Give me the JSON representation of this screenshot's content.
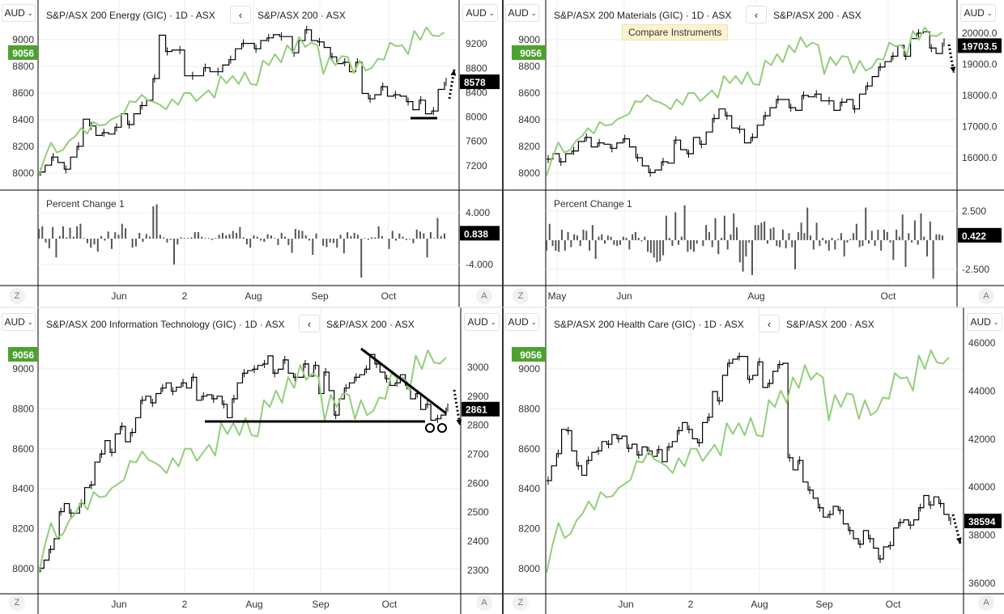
{
  "colors": {
    "benchmark_line": "#93cf7b",
    "sector_line": "#000000",
    "badge_benchmark": "#4ca22f",
    "badge_sector": "#000000",
    "indicator_bars": "#555555",
    "gridlines": "#eeeeee"
  },
  "tooltip": "Compare Instruments",
  "chart_data": [
    {
      "type": "line",
      "title": "S&P/ASX 200 Energy (GIC) · 1D · ASX",
      "compare": "S&P/ASX 200 · ASX",
      "currency_left": "AUD",
      "currency_right": "AUD",
      "left_badge": "9056",
      "right_badge": "8578",
      "left_axis": {
        "range": [
          7873,
          9297
        ],
        "ticks": [
          "8000",
          "8200",
          "8400",
          "8600",
          "8800",
          "9000"
        ]
      },
      "right_axis": {
        "range": [
          6800,
          9920
        ],
        "ticks": [
          "7200",
          "7600",
          "8000",
          "8400",
          "8800",
          "9200"
        ]
      },
      "x_ticks": [
        "Jun",
        "2",
        "Aug",
        "Sep",
        "Oct"
      ],
      "series": [
        {
          "name": "S&P/ASX 200 Energy (GIC)",
          "axis": "right",
          "values": [
            7098,
            7209,
            7342,
            7253,
            7142,
            7342,
            7520,
            7964,
            7853,
            7698,
            7742,
            7720,
            7831,
            8053,
            7875,
            8053,
            8187,
            8276,
            8631,
            9342,
            9076,
            9098,
            9098,
            8676,
            8676,
            8676,
            8809,
            8742,
            8742,
            8853,
            8942,
            9120,
            9209,
            9209,
            9120,
            9253,
            9298,
            9351,
            9320,
            9320,
            9053,
            9253,
            9431,
            9253,
            9231,
            9142,
            8987,
            8876,
            8898,
            8742,
            8898,
            8387,
            8298,
            8365,
            8498,
            8342,
            8365,
            8342,
            8253,
            8120,
            8276,
            8053,
            8098,
            8453,
            8578
          ]
        },
        {
          "name": "S&P/ASX 200",
          "axis": "left",
          "values": [
            7979,
            8120,
            8229,
            8154,
            8175,
            8242,
            8276,
            8337,
            8296,
            8384,
            8357,
            8364,
            8404,
            8424,
            8445,
            8539,
            8532,
            8587,
            8546,
            8532,
            8512,
            8478,
            8553,
            8512,
            8600,
            8600,
            8539,
            8580,
            8620,
            8566,
            8728,
            8674,
            8728,
            8668,
            8755,
            8668,
            8661,
            8843,
            8809,
            8891,
            8830,
            8958,
            8904,
            9019,
            8945,
            8978,
            8958,
            8742,
            8870,
            8809,
            8877,
            8870,
            8749,
            8843,
            8768,
            8789,
            8857,
            8850,
            8978,
            8951,
            8958,
            8891,
            9066,
            8999,
            9093,
            9032,
            9026,
            9056
          ]
        }
      ],
      "indicator": {
        "label": "Percent Change 1",
        "badge": "0.838",
        "range": [
          -7.25,
          7.5
        ],
        "ticks": [
          "4.000",
          "-4.000"
        ],
        "values": [
          1.5,
          1.9,
          -0.6,
          -1.5,
          1.8,
          -2.9,
          0.4,
          1.9,
          0.2,
          1.7,
          0.3,
          1.9,
          2.3,
          0.1,
          -0.7,
          -1.4,
          -0.9,
          -2.0,
          0.4,
          -0.3,
          1.1,
          -1.6,
          1.0,
          0.6,
          2.3,
          1.6,
          0.0,
          -1.4,
          -1.2,
          0.9,
          -0.5,
          0.7,
          0.3,
          5.0,
          5.3,
          0.6,
          0.2,
          -0.6,
          -0.2,
          -4.0,
          -0.9,
          0.2,
          0.1,
          0.1,
          0.2,
          1.0,
          1.0,
          0.3,
          0.1,
          0.1,
          -0.2,
          0.1,
          0.6,
          0.9,
          0.5,
          0.7,
          1.2,
          0.9,
          1.8,
          0.2,
          -0.9,
          -1.4,
          0.5,
          0.3,
          -0.3,
          -0.5,
          0.7,
          0.5,
          0.1,
          -1.0,
          0.9,
          0.3,
          -1.0,
          -2.2,
          1.5,
          1.3,
          1.2,
          0.5,
          -0.3,
          -2.5,
          0.8,
          0.0,
          -1.1,
          -1.3,
          -0.6,
          -0.7,
          -1.4,
          0.6,
          -2.3,
          1.0,
          0.4,
          0.9,
          0.6,
          -6.0,
          0.1,
          -0.2,
          0.2,
          0.2,
          1.9,
          0.4,
          0.0,
          -1.6,
          1.2,
          -0.3,
          0.8,
          0.3,
          -0.2,
          -0.1,
          -0.7,
          1.4,
          1.1,
          0.8,
          -2.9,
          1.0,
          0.1,
          3.2,
          0.4,
          0.8
        ]
      }
    },
    {
      "type": "line",
      "title": "S&P/ASX 200 Materials (GIC) · 1D · ASX",
      "compare": "S&P/ASX 200 · ASX",
      "currency_left": "AUD",
      "currency_right": "AUD",
      "left_badge": "9056",
      "right_badge": "19703.5",
      "left_axis": {
        "range": [
          7873,
          9297
        ],
        "ticks": [
          "8000",
          "8200",
          "8400",
          "8600",
          "8800",
          "9000"
        ]
      },
      "right_axis": {
        "range": [
          14961,
          21065
        ],
        "ticks": [
          "16000.0",
          "17000.0",
          "18000.0",
          "19000.0",
          "20000.0"
        ]
      },
      "x_ticks": [
        "May",
        "Jun",
        "Aug",
        "Oct"
      ],
      "series": [
        {
          "name": "S&P/ASX 200 Materials (GIC)",
          "axis": "right",
          "values": [
            15956,
            16130,
            15870,
            16130,
            16217,
            16522,
            16652,
            16348,
            16478,
            16435,
            16304,
            16478,
            16609,
            16348,
            16000,
            15739,
            15522,
            15609,
            15870,
            15826,
            16565,
            16261,
            16130,
            16652,
            16435,
            16826,
            17261,
            17565,
            17348,
            16957,
            16913,
            16478,
            16652,
            17043,
            17348,
            17609,
            17870,
            17870,
            17609,
            17522,
            18000,
            17957,
            18043,
            17826,
            17826,
            17522,
            17783,
            17870,
            17565,
            18043,
            18304,
            18609,
            18913,
            19087,
            19261,
            19609,
            19261,
            19826,
            20000,
            20043,
            19522,
            19348,
            19703.5
          ]
        },
        {
          "name": "S&P/ASX 200",
          "axis": "left",
          "values": [
            7979,
            8120,
            8229,
            8154,
            8175,
            8242,
            8276,
            8337,
            8296,
            8384,
            8357,
            8364,
            8404,
            8424,
            8445,
            8539,
            8532,
            8587,
            8546,
            8532,
            8512,
            8478,
            8553,
            8512,
            8600,
            8600,
            8539,
            8580,
            8620,
            8566,
            8728,
            8674,
            8728,
            8668,
            8755,
            8668,
            8661,
            8843,
            8809,
            8891,
            8830,
            8958,
            8904,
            9019,
            8945,
            8978,
            8958,
            8742,
            8870,
            8809,
            8877,
            8870,
            8749,
            8843,
            8768,
            8789,
            8857,
            8850,
            8978,
            8951,
            8958,
            8891,
            9066,
            8999,
            9093,
            9032,
            9026,
            9056
          ]
        }
      ],
      "indicator": {
        "label": "Percent Change 1",
        "badge": "0.422",
        "range": [
          -3.9,
          4.3
        ],
        "ticks": [
          "2.500",
          "-2.500"
        ],
        "values": [
          -0.9,
          1.4,
          -0.5,
          -0.9,
          -1.0,
          0.9,
          -0.9,
          0.7,
          -0.6,
          0.5,
          0.4,
          -0.5,
          0.9,
          0.8,
          -0.9,
          1.3,
          -1.6,
          0.3,
          0.5,
          -0.3,
          0.4,
          0.3,
          -0.4,
          -0.5,
          -0.4,
          0.3,
          0.2,
          -0.8,
          0.5,
          0.7,
          0.2,
          -0.1,
          0.3,
          -1.0,
          -1.1,
          -1.5,
          -1.9,
          -1.8,
          -1.3,
          2.1,
          0.2,
          -0.5,
          2.4,
          -0.4,
          0.3,
          3.0,
          -1.0,
          -0.8,
          -1.0,
          -0.3,
          0.0,
          -0.5,
          1.3,
          0.7,
          -0.6,
          1.9,
          -1.2,
          0.2,
          2.1,
          -0.8,
          0.5,
          2.3,
          1.1,
          -1.9,
          -2.7,
          -1.4,
          -0.2,
          -3.0,
          1.3,
          1.3,
          1.5,
          1.6,
          -0.3,
          1.0,
          1.1,
          -0.5,
          -0.6,
          0.9,
          -0.7,
          0.6,
          -0.6,
          -2.5,
          0.7,
          1.5,
          0.6,
          2.8,
          0.4,
          -0.8,
          1.5,
          -0.5,
          0.2,
          -0.3,
          -0.9,
          0.2,
          -0.8,
          0.1,
          0.6,
          -1.4,
          -0.2,
          0.1,
          0.6,
          1.4,
          -0.6,
          -0.5,
          2.8,
          -0.3,
          0.8,
          -0.5,
          0.9,
          -0.9,
          0.9,
          0.7,
          -0.2,
          -1.7,
          0.9,
          0.3,
          2.2,
          -2.3,
          0.6,
          -0.2,
          1.7,
          -0.4,
          2.3,
          0.3,
          -1.4,
          1.6,
          -3.3,
          0.5,
          0.5,
          0.4
        ]
      }
    },
    {
      "type": "line",
      "title": "S&P/ASX 200 Information Technology (GIC) · 1D · ASX",
      "compare": "S&P/ASX 200 · ASX",
      "currency_left": "AUD",
      "currency_right": "AUD",
      "left_badge": "9056",
      "right_badge": "2861",
      "left_axis": {
        "range": [
          7875,
          9307
        ],
        "ticks": [
          "8000",
          "8200",
          "8400",
          "8600",
          "8800",
          "9000"
        ]
      },
      "right_axis": {
        "range": [
          2219,
          3206
        ],
        "ticks": [
          "2300",
          "2400",
          "2500",
          "2600",
          "2700",
          "2800",
          "2900",
          "3000"
        ]
      },
      "x_ticks": [
        "Jun",
        "2",
        "Aug",
        "Sep",
        "Oct"
      ],
      "series": [
        {
          "name": "S&P/ASX 200 Information Technology (GIC)",
          "axis": "right",
          "values": [
            2307,
            2335,
            2372,
            2409,
            2502,
            2530,
            2497,
            2497,
            2530,
            2585,
            2594,
            2673,
            2701,
            2747,
            2706,
            2770,
            2796,
            2743,
            2775,
            2826,
            2886,
            2900,
            2877,
            2909,
            2928,
            2946,
            2917,
            2931,
            2946,
            2928,
            2965,
            2886,
            2900,
            2905,
            2891,
            2900,
            2872,
            2826,
            2891,
            2946,
            2979,
            2988,
            2993,
            3006,
            3011,
            3039,
            2979,
            2993,
            3025,
            2979,
            2965,
            2965,
            3011,
            2969,
            3006,
            2909,
            2983,
            2919,
            2835,
            2891,
            2928,
            2946,
            2965,
            2974,
            2993,
            3044,
            3011,
            2983,
            2960,
            2937,
            2946,
            2974,
            2937,
            2891,
            2909,
            2854,
            2872,
            2817,
            2822,
            2835,
            2861
          ]
        },
        {
          "name": "S&P/ASX 200",
          "axis": "left",
          "values": [
            7979,
            8120,
            8229,
            8154,
            8175,
            8242,
            8276,
            8337,
            8296,
            8384,
            8357,
            8364,
            8404,
            8424,
            8445,
            8539,
            8532,
            8587,
            8546,
            8532,
            8512,
            8478,
            8553,
            8512,
            8600,
            8600,
            8539,
            8580,
            8620,
            8566,
            8728,
            8674,
            8728,
            8668,
            8755,
            8668,
            8661,
            8843,
            8809,
            8891,
            8830,
            8958,
            8904,
            9019,
            8945,
            8978,
            8958,
            8742,
            8870,
            8809,
            8877,
            8870,
            8749,
            8843,
            8768,
            8789,
            8857,
            8850,
            8978,
            8951,
            8958,
            8891,
            9066,
            8999,
            9093,
            9032,
            9026,
            9056
          ]
        }
      ]
    },
    {
      "type": "line",
      "title": "S&P/ASX 200 Health Care (GIC) · 1D · ASX",
      "compare": "S&P/ASX 200 · ASX",
      "currency_left": "AUD",
      "currency_right": "AUD",
      "left_badge": "9056",
      "right_badge": "38594",
      "left_axis": {
        "range": [
          7875,
          9307
        ],
        "ticks": [
          "8000",
          "8200",
          "8400",
          "8600",
          "8800",
          "9000"
        ]
      },
      "right_axis": {
        "range": [
          35563,
          47479
        ],
        "ticks": [
          "36000",
          "38000",
          "40000",
          "42000",
          "44000",
          "46000"
        ]
      },
      "x_ticks": [
        "Jun",
        "2",
        "Aug",
        "Sep",
        "Oct"
      ],
      "series": [
        {
          "name": "S&P/ASX 200 Health Care (GIC)",
          "axis": "right",
          "values": [
            40270,
            40888,
            41393,
            42404,
            42348,
            41506,
            40888,
            40494,
            41112,
            41449,
            41506,
            41899,
            41787,
            42180,
            42011,
            42124,
            41618,
            41787,
            41337,
            41674,
            41506,
            41281,
            41562,
            41056,
            41674,
            41899,
            42348,
            42685,
            42404,
            42011,
            41843,
            42685,
            42910,
            43978,
            43584,
            44652,
            45157,
            45326,
            45438,
            45438,
            44483,
            44652,
            45213,
            44146,
            44315,
            44820,
            45101,
            45157,
            41225,
            40719,
            41112,
            40214,
            39876,
            39539,
            39146,
            38753,
            38865,
            39202,
            39034,
            38472,
            38191,
            37854,
            37629,
            38191,
            37854,
            37461,
            37011,
            37517,
            37573,
            38303,
            38528,
            38640,
            38416,
            38640,
            39146,
            39652,
            39258,
            39596,
            39315,
            38865,
            38594
          ]
        },
        {
          "name": "S&P/ASX 200",
          "axis": "left",
          "values": [
            7979,
            8120,
            8229,
            8154,
            8175,
            8242,
            8276,
            8337,
            8296,
            8384,
            8357,
            8364,
            8404,
            8424,
            8445,
            8539,
            8532,
            8587,
            8546,
            8532,
            8512,
            8478,
            8553,
            8512,
            8600,
            8600,
            8539,
            8580,
            8620,
            8566,
            8728,
            8674,
            8728,
            8668,
            8755,
            8668,
            8661,
            8843,
            8809,
            8891,
            8830,
            8958,
            8904,
            9019,
            8945,
            8978,
            8958,
            8742,
            8870,
            8809,
            8877,
            8870,
            8749,
            8843,
            8768,
            8789,
            8857,
            8850,
            8978,
            8951,
            8958,
            8891,
            9066,
            8999,
            9093,
            9032,
            9026,
            9056
          ]
        }
      ]
    }
  ],
  "icons": {
    "back": "chevron-left-icon",
    "dropdown": "chevron-down-icon"
  },
  "corner_buttons": {
    "zoom": "Z",
    "auto": "A"
  }
}
